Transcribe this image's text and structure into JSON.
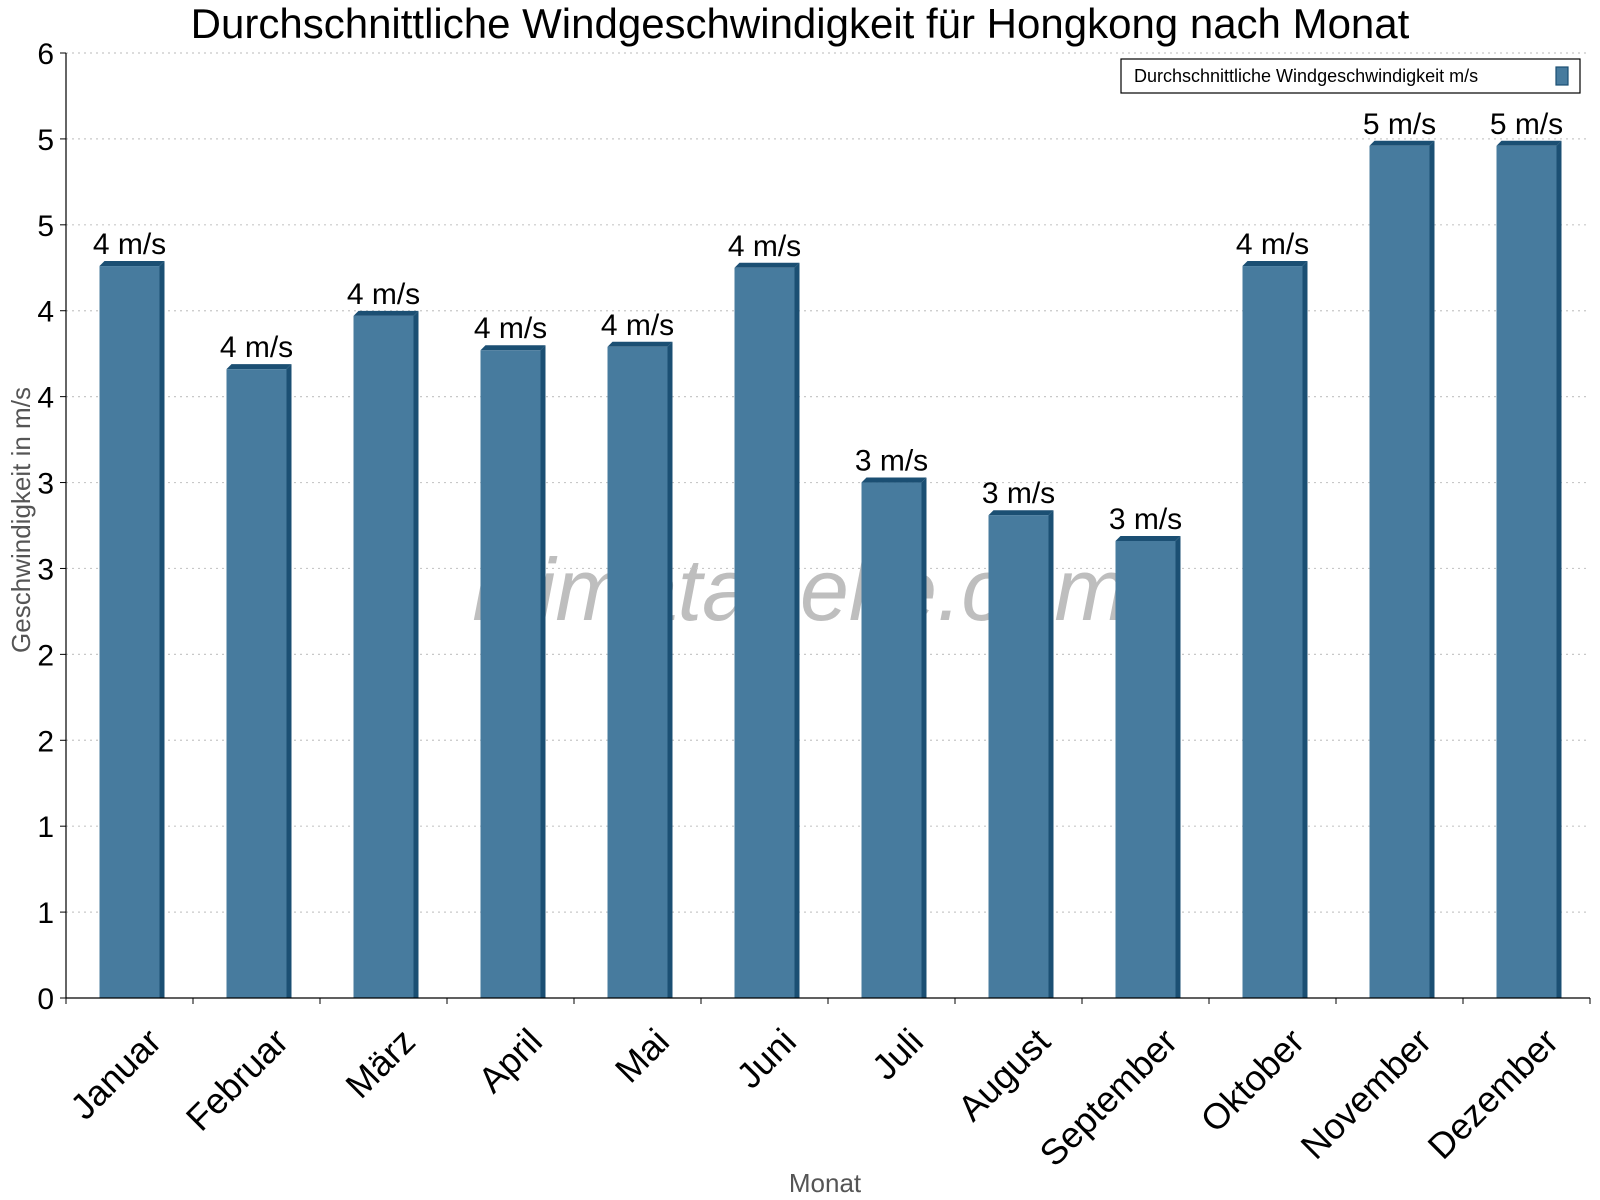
{
  "chart_data": {
    "type": "bar",
    "title": "Durchschnittliche Windgeschwindigkeit für Hongkong nach Monat",
    "xlabel": "Monat",
    "ylabel": "Geschwindigkeit in m/s",
    "ylim": [
      0,
      5.5
    ],
    "y_tick_values": [
      0,
      0.5,
      1,
      1.5,
      2,
      2.5,
      3,
      3.5,
      4,
      4.5,
      5,
      5.5
    ],
    "y_tick_labels": [
      "0",
      "1",
      "1",
      "2",
      "2",
      "3",
      "3",
      "4",
      "4",
      "5",
      "5",
      "6"
    ],
    "grid": true,
    "legend_position": "top-right",
    "categories": [
      "Januar",
      "Februar",
      "März",
      "April",
      "Mai",
      "Juni",
      "Juli",
      "August",
      "September",
      "Oktober",
      "November",
      "Dezember"
    ],
    "series": [
      {
        "name": "Durchschnittliche Windgeschwindigkeit m/s",
        "color": "#477b9e",
        "values": [
          4.26,
          3.66,
          3.97,
          3.77,
          3.79,
          4.25,
          3.0,
          2.81,
          2.66,
          4.26,
          4.96,
          4.96
        ],
        "labels": [
          "4 m/s",
          "4 m/s",
          "4 m/s",
          "4 m/s",
          "4 m/s",
          "4 m/s",
          "3 m/s",
          "3 m/s",
          "3 m/s",
          "4 m/s",
          "5 m/s",
          "5 m/s"
        ]
      }
    ]
  },
  "watermark": "klimatabelle.com",
  "colors": {
    "bar_fill": "#477b9e",
    "bar_side": "#1b4f73",
    "grid": "#c8c8c8",
    "axis": "#000000"
  }
}
